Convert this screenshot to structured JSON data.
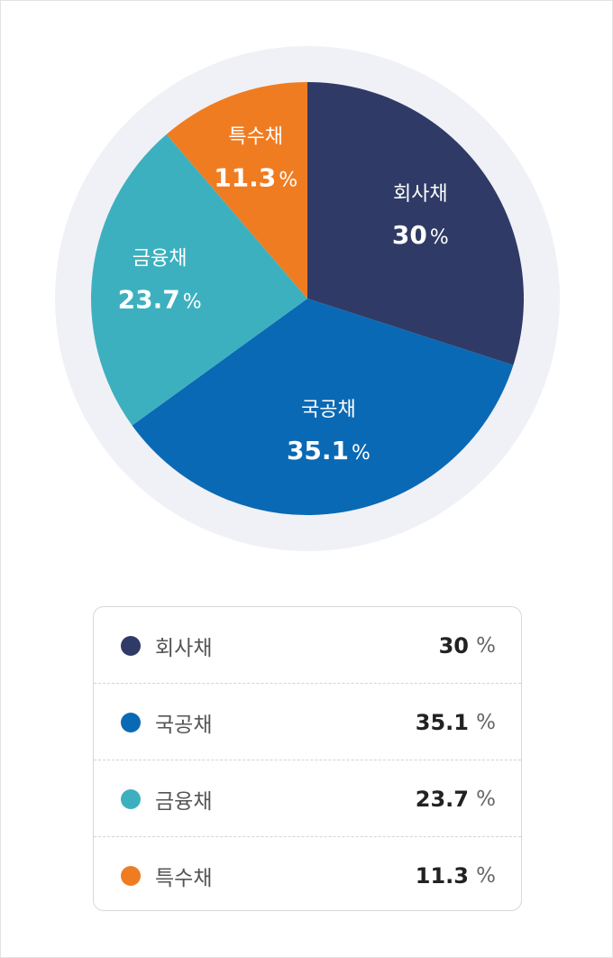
{
  "chart_data": {
    "type": "pie",
    "title": "",
    "unit": "%",
    "slices": [
      {
        "label": "회사채",
        "value": 30,
        "value_text": "30",
        "color": "#2f3b66"
      },
      {
        "label": "국공채",
        "value": 35.1,
        "value_text": "35.1",
        "color": "#0a69b4"
      },
      {
        "label": "금융채",
        "value": 23.7,
        "value_text": "23.7",
        "color": "#3db0bf"
      },
      {
        "label": "특수채",
        "value": 11.3,
        "value_text": "11.3",
        "color": "#f07c22"
      }
    ],
    "start_angle": "12 o'clock",
    "direction": "clockwise",
    "ring_color": "#f0f1f6"
  },
  "legend": {
    "rows": [
      {
        "label": "회사채",
        "value": "30",
        "unit": "%",
        "color": "#2f3b66"
      },
      {
        "label": "국공채",
        "value": "35.1",
        "unit": "%",
        "color": "#0a69b4"
      },
      {
        "label": "금융채",
        "value": "23.7",
        "unit": "%",
        "color": "#3db0bf"
      },
      {
        "label": "특수채",
        "value": "11.3",
        "unit": "%",
        "color": "#f07c22"
      }
    ]
  }
}
